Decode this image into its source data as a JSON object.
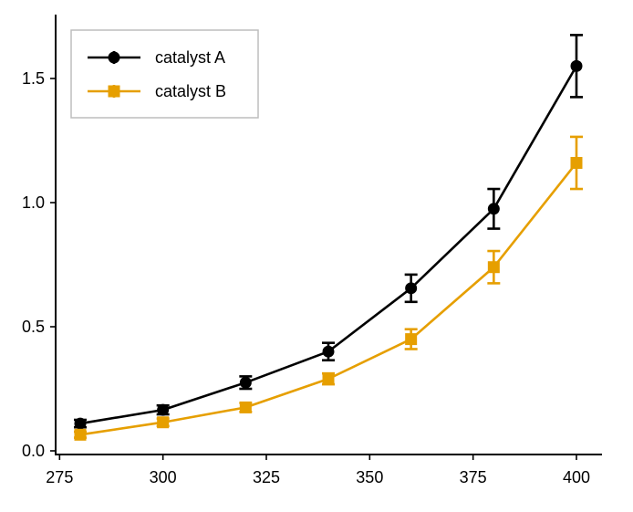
{
  "chart_data": {
    "type": "line",
    "title": "",
    "xlabel": "",
    "ylabel": "",
    "xlim": [
      272,
      406
    ],
    "ylim": [
      -0.02,
      1.75
    ],
    "x_ticks": [
      275,
      300,
      325,
      350,
      375,
      400
    ],
    "y_ticks": [
      0.0,
      0.5,
      1.0,
      1.5
    ],
    "x_tick_labels": [
      "275",
      "300",
      "325",
      "350",
      "375",
      "400"
    ],
    "y_tick_labels": [
      "0.0",
      "0.5",
      "1.0",
      "1.5"
    ],
    "grid": false,
    "legend_position": "top-left",
    "x": [
      280,
      300,
      320,
      340,
      360,
      380,
      400
    ],
    "series": [
      {
        "name": "catalyst A",
        "color": "#000000",
        "marker": "circle",
        "values": [
          0.11,
          0.165,
          0.275,
          0.4,
          0.655,
          0.975,
          1.55
        ],
        "errors": [
          0.015,
          0.018,
          0.025,
          0.035,
          0.055,
          0.08,
          0.125
        ]
      },
      {
        "name": "catalyst B",
        "color": "#E69F00",
        "marker": "square",
        "values": [
          0.065,
          0.115,
          0.175,
          0.29,
          0.45,
          0.74,
          1.16
        ],
        "errors": [
          0.012,
          0.015,
          0.018,
          0.022,
          0.04,
          0.065,
          0.105
        ]
      }
    ]
  }
}
